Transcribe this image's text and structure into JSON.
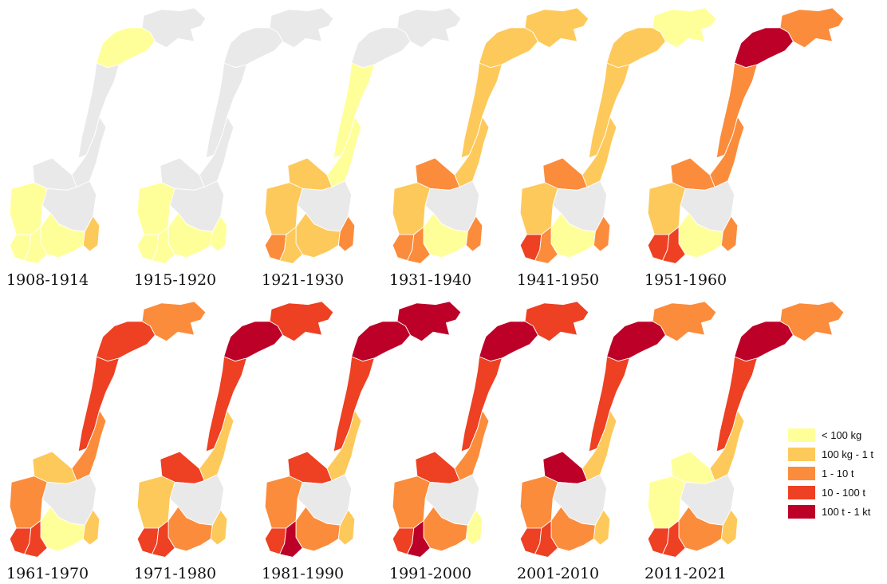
{
  "periods": [
    {
      "label": "1908-1914",
      "levels": {
        "north": 1,
        "finnmark": 0,
        "nordland": 0,
        "trond": 0,
        "more": 0,
        "west": 1,
        "east": 0,
        "southwest": 1,
        "southeast": 1,
        "southtip": 1,
        "oslo": 2
      }
    },
    {
      "label": "1915-1920",
      "levels": {
        "north": 0,
        "finnmark": 0,
        "nordland": 0,
        "trond": 0,
        "more": 0,
        "west": 1,
        "east": 0,
        "southwest": 1,
        "southeast": 1,
        "southtip": 1,
        "oslo": 1
      }
    },
    {
      "label": "1921-1930",
      "levels": {
        "north": 0,
        "finnmark": 0,
        "nordland": 1,
        "trond": 1,
        "more": 2,
        "west": 2,
        "east": 0,
        "southwest": 3,
        "southeast": 2,
        "southtip": 2,
        "oslo": 3
      }
    },
    {
      "label": "1931-1940",
      "levels": {
        "north": 2,
        "finnmark": 2,
        "nordland": 2,
        "trond": 2,
        "more": 3,
        "west": 2,
        "east": 0,
        "southwest": 3,
        "southeast": 1,
        "southtip": 3,
        "oslo": 3
      }
    },
    {
      "label": "1941-1950",
      "levels": {
        "north": 2,
        "finnmark": 1,
        "nordland": 2,
        "trond": 2,
        "more": 3,
        "west": 2,
        "east": 0,
        "southwest": 4,
        "southeast": 1,
        "southtip": 3,
        "oslo": 3
      }
    },
    {
      "label": "1951-1960",
      "levels": {
        "north": 5,
        "finnmark": 3,
        "nordland": 3,
        "trond": 3,
        "more": 3,
        "west": 2,
        "east": 0,
        "southwest": 4,
        "southeast": 1,
        "southtip": 4,
        "oslo": 3
      }
    },
    {
      "label": "1961-1970",
      "levels": {
        "north": 4,
        "finnmark": 3,
        "nordland": 4,
        "trond": 3,
        "more": 2,
        "west": 3,
        "east": 0,
        "southwest": 4,
        "southeast": 1,
        "southtip": 4,
        "oslo": 2
      }
    },
    {
      "label": "1971-1980",
      "levels": {
        "north": 5,
        "finnmark": 4,
        "nordland": 4,
        "trond": 2,
        "more": 4,
        "west": 2,
        "east": 0,
        "southwest": 4,
        "southeast": 3,
        "southtip": 4,
        "oslo": 2
      }
    },
    {
      "label": "1981-1990",
      "levels": {
        "north": 5,
        "finnmark": 5,
        "nordland": 4,
        "trond": 2,
        "more": 4,
        "west": 3,
        "east": 0,
        "southwest": 4,
        "southeast": 3,
        "southtip": 5,
        "oslo": 2
      }
    },
    {
      "label": "1991-2000",
      "levels": {
        "north": 5,
        "finnmark": 4,
        "nordland": 4,
        "trond": 3,
        "more": 4,
        "west": 3,
        "east": 0,
        "southwest": 4,
        "southeast": 3,
        "southtip": 5,
        "oslo": 1
      }
    },
    {
      "label": "2001-2010",
      "levels": {
        "north": 5,
        "finnmark": 3,
        "nordland": 4,
        "trond": 2,
        "more": 5,
        "west": 3,
        "east": 0,
        "southwest": 4,
        "southeast": 3,
        "southtip": 4,
        "oslo": 2
      }
    },
    {
      "label": "2011-2021",
      "levels": {
        "north": 5,
        "finnmark": 3,
        "nordland": 4,
        "trond": 2,
        "more": 1,
        "west": 1,
        "east": 0,
        "southwest": 4,
        "southeast": 3,
        "southtip": 4,
        "oslo": 2
      }
    }
  ],
  "legend": [
    {
      "label": "< 100 kg",
      "color": "#ffff9a"
    },
    {
      "label": "100 kg - 1 t",
      "color": "#fdc95a"
    },
    {
      "label": "1 - 10 t",
      "color": "#fb8c3c"
    },
    {
      "label": "10 - 100 t",
      "color": "#ee4022"
    },
    {
      "label": "100 t - 1 kt",
      "color": "#bd0027"
    }
  ],
  "no_data_color": "#e9e9e9"
}
